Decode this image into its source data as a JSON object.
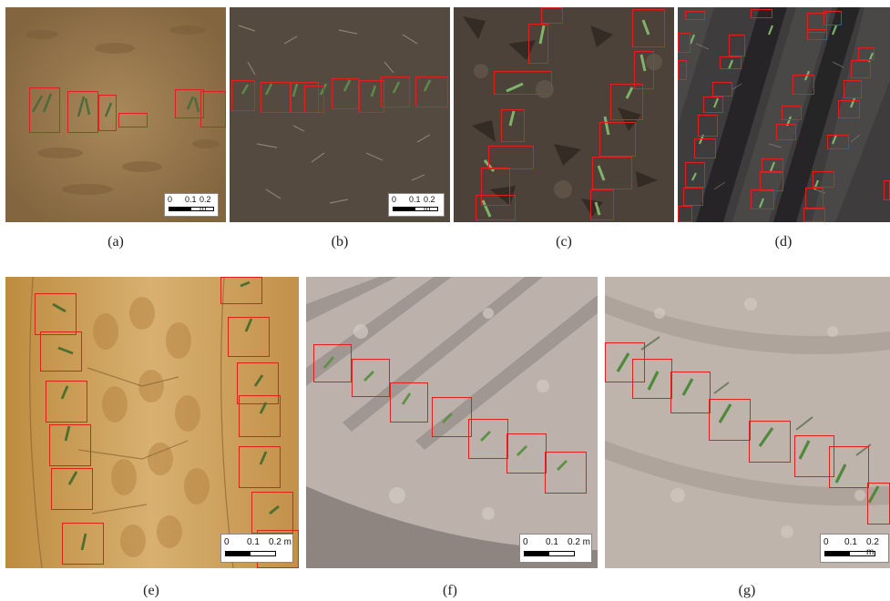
{
  "figure": {
    "captions": [
      "(a)",
      "(b)",
      "(c)",
      "(d)",
      "(e)",
      "(f)",
      "(g)"
    ],
    "scale_bar": {
      "t0": "0",
      "t1": "0.1",
      "t2": "0.2 m"
    }
  },
  "panels": [
    {
      "id": "a",
      "soil_color": "#9a7a4f",
      "description": "Tan soil, plant row with detections"
    },
    {
      "id": "b",
      "soil_color": "#564c42",
      "description": "Dark soil with straw, plant row detections"
    },
    {
      "id": "c",
      "soil_color": "#4a3f36",
      "description": "Dark clumpy soil, two plant rows"
    },
    {
      "id": "d",
      "soil_color": "#3b3a3c",
      "description": "Diagonal furrows with many detections"
    },
    {
      "id": "e",
      "soil_color": "#c89a4d",
      "description": "Cracked yellow soil, two vertical rows"
    },
    {
      "id": "f",
      "soil_color": "#b4aaa3",
      "description": "Grey-white soil, diagonal row"
    },
    {
      "id": "g",
      "soil_color": "#b9aea6",
      "description": "Grey-white soil, diagonal row"
    }
  ]
}
